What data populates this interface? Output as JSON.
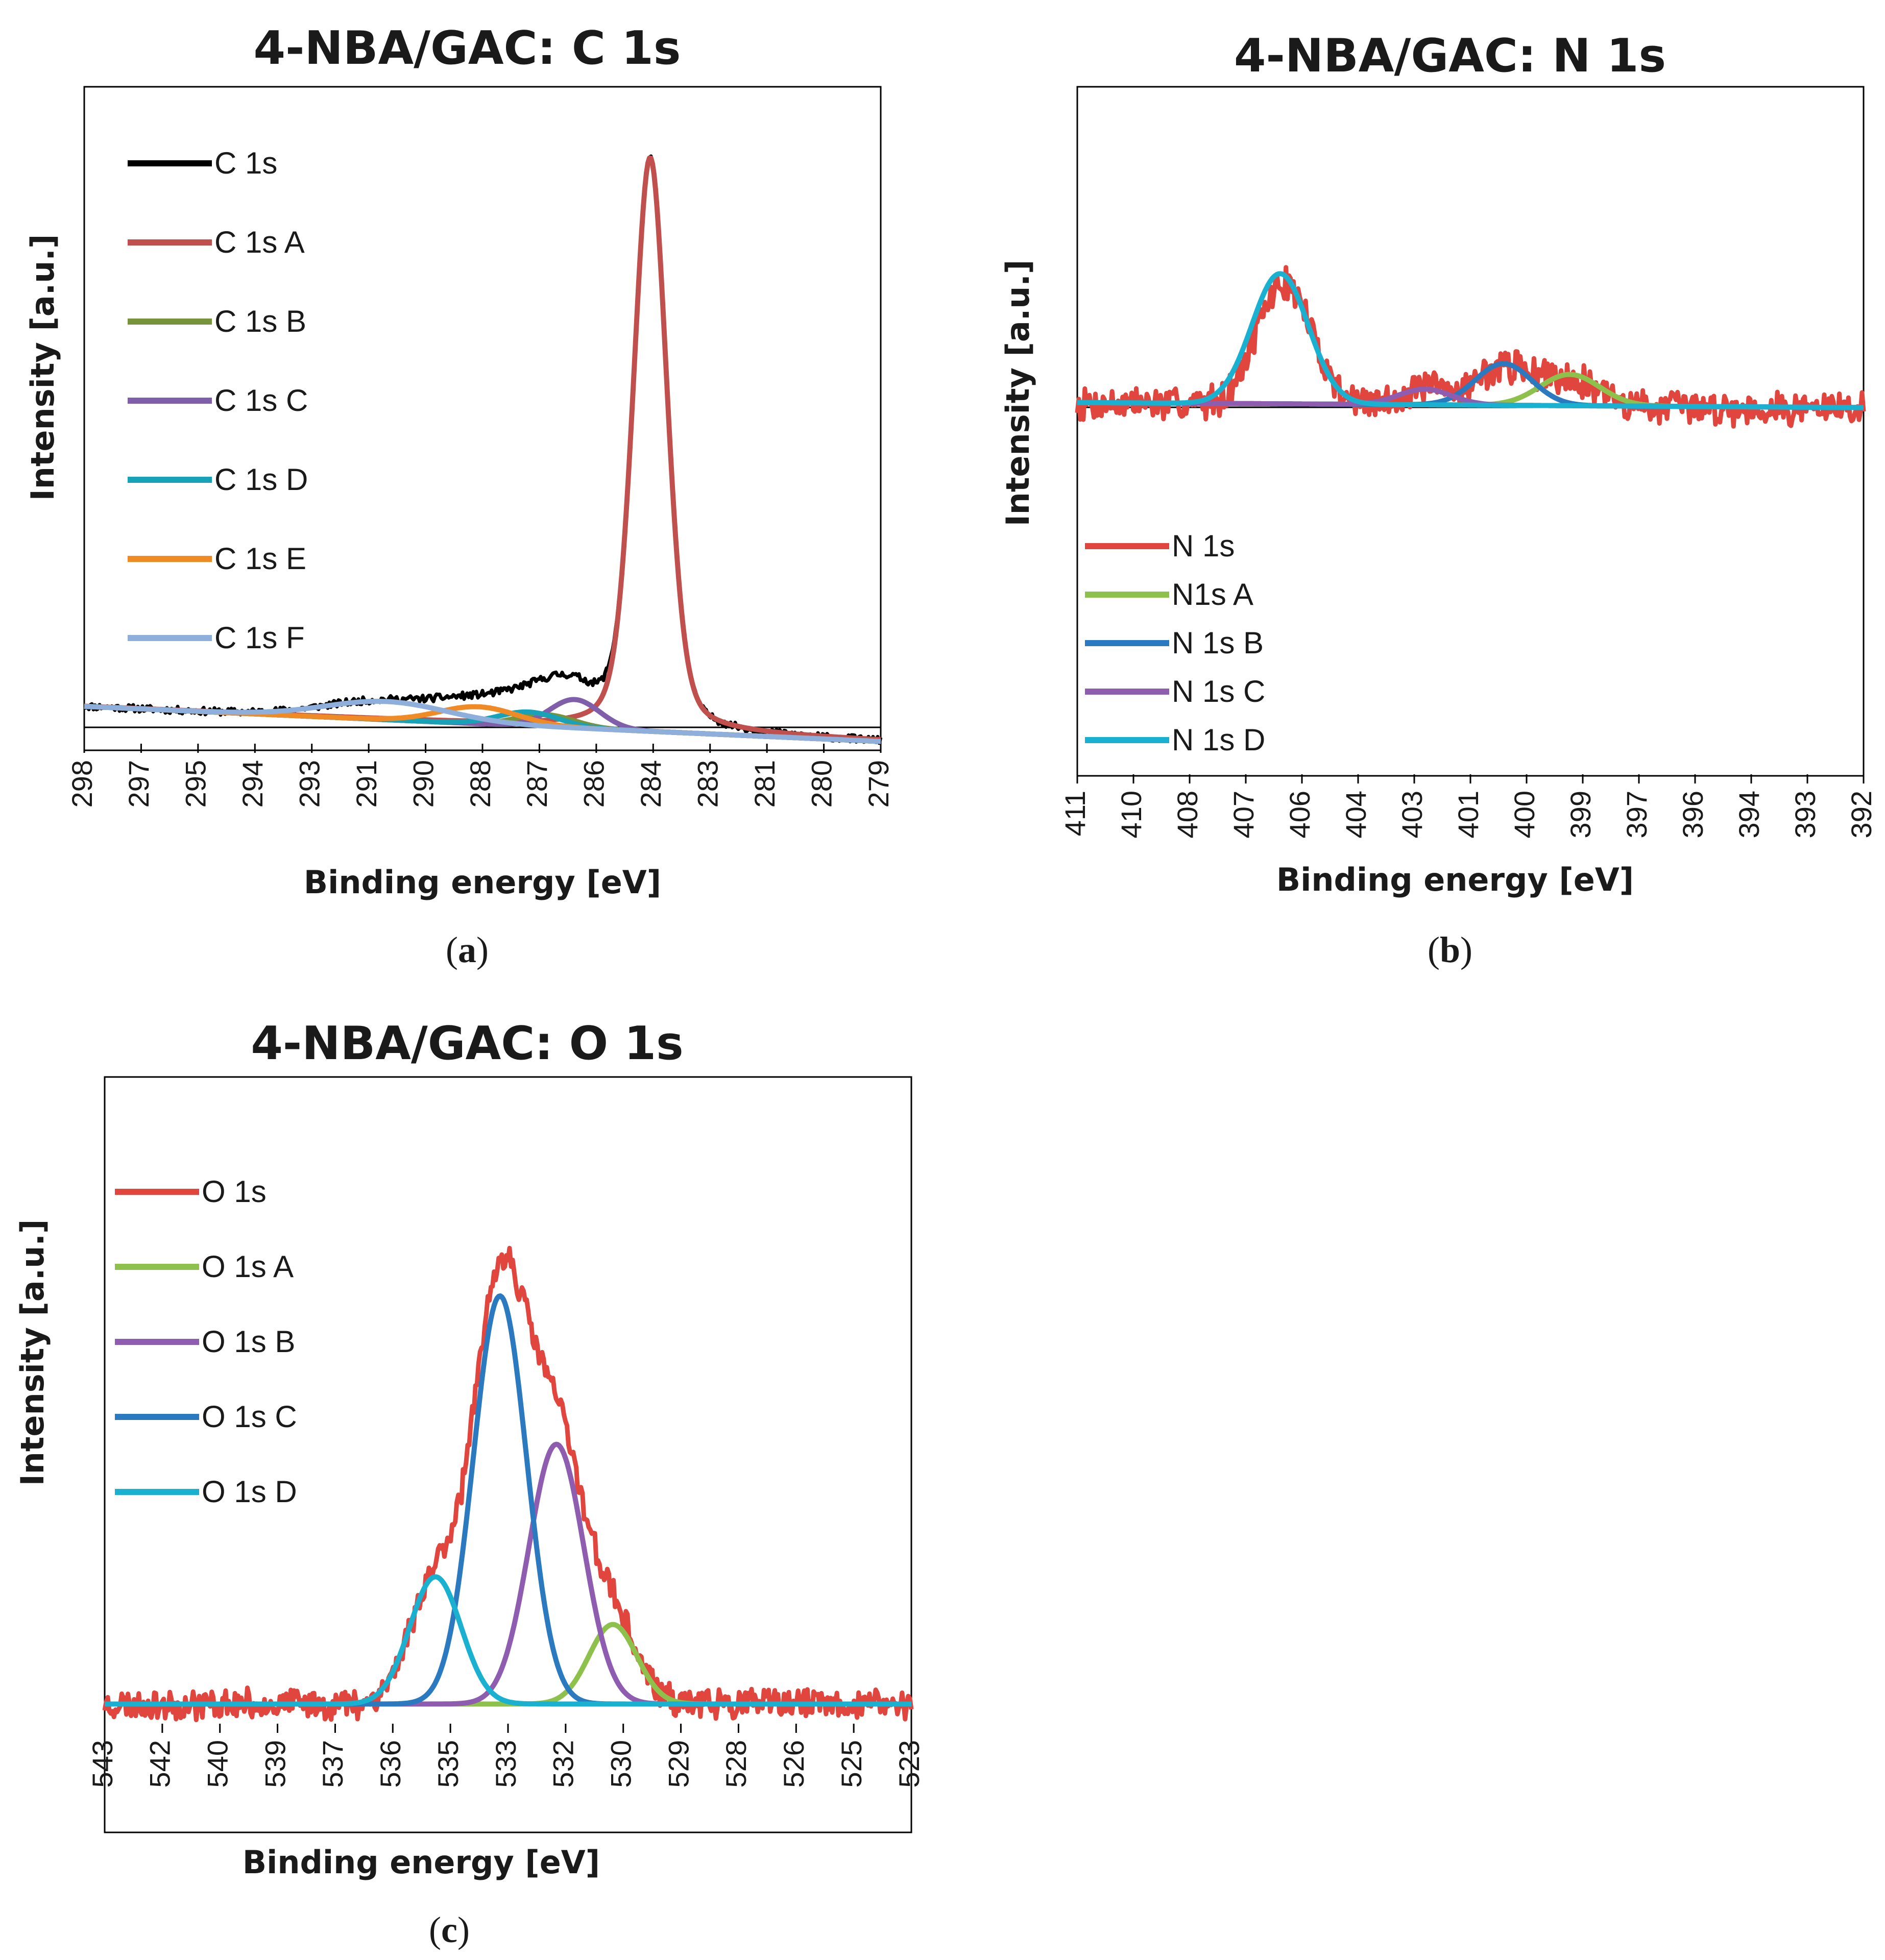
{
  "figure": {
    "panels": [
      {
        "id": "a",
        "letter": "a",
        "open": "(",
        "close": ")"
      },
      {
        "id": "b",
        "letter": "b",
        "open": "(",
        "close": ")"
      },
      {
        "id": "c",
        "letter": "c",
        "open": "(",
        "close": ")"
      }
    ]
  },
  "chart_data": [
    {
      "id": "a",
      "type": "line",
      "title": "4-NBA/GAC: C 1s",
      "xlabel": "Binding energy [eV]",
      "ylabel": "Intensity [a.u.]",
      "xlim": [
        298,
        279
      ],
      "ylim": [
        0,
        100
      ],
      "x_ticks": [
        298,
        297,
        295,
        294,
        293,
        291,
        290,
        288,
        287,
        286,
        284,
        283,
        281,
        280,
        279
      ],
      "legend_position": "top-left",
      "series": [
        {
          "name": "C 1s",
          "color": "#000000",
          "noise": 1.2,
          "seed": 11,
          "envelope": true,
          "peaks": [],
          "baseline": [
            6.0,
            0.2
          ]
        },
        {
          "name": "C 1s A",
          "color": "#c0504d",
          "noise": 0,
          "lorentz": true,
          "peaks": [
            {
              "center": 284.5,
              "height": 94.8,
              "fwhm": 0.95
            }
          ],
          "baseline": [
            6.0,
            0.3
          ]
        },
        {
          "name": "C 1s B",
          "color": "#77933c",
          "noise": 0,
          "peaks": [
            {
              "center": 287.0,
              "height": 2.0,
              "fwhm": 1.6
            }
          ],
          "baseline": [
            6.0,
            0.2
          ]
        },
        {
          "name": "C 1s C",
          "color": "#7f5fa9",
          "noise": 0,
          "peaks": [
            {
              "center": 286.3,
              "height": 4.7,
              "fwhm": 1.4
            }
          ],
          "baseline": [
            6.0,
            0.2
          ]
        },
        {
          "name": "C 1s D",
          "color": "#17a2b8",
          "noise": 0,
          "peaks": [
            {
              "center": 287.4,
              "height": 2.3,
              "fwhm": 1.7
            }
          ],
          "baseline": [
            6.0,
            0.2
          ]
        },
        {
          "name": "C 1s E",
          "color": "#f08a24",
          "noise": 0,
          "peaks": [
            {
              "center": 288.6,
              "height": 2.8,
              "fwhm": 2.2
            }
          ],
          "baseline": [
            6.0,
            0.2
          ]
        },
        {
          "name": "C 1s F",
          "color": "#8eaedb",
          "noise": 0,
          "peaks": [
            {
              "center": 290.8,
              "height": 3.0,
              "fwhm": 3.4
            }
          ],
          "baseline": [
            6.0,
            0.2
          ]
        }
      ]
    },
    {
      "id": "b",
      "type": "line",
      "title": "4-NBA/GAC: N 1s",
      "xlabel": "Binding energy [eV]",
      "ylabel": "Intensity [a.u.]",
      "xlim": [
        411,
        392
      ],
      "ylim": [
        -50,
        100
      ],
      "x_ticks": [
        411,
        410,
        408,
        407,
        406,
        404,
        403,
        401,
        400,
        399,
        397,
        396,
        394,
        393,
        392
      ],
      "legend_position": "bottom-left",
      "series": [
        {
          "name": "N 1s",
          "color": "#e0453e",
          "noise": 11,
          "seed": 7,
          "peaks": [
            {
              "center": 406.0,
              "height": 70,
              "fwhm": 1.55
            },
            {
              "center": 402.6,
              "height": 9,
              "fwhm": 1.4
            },
            {
              "center": 400.7,
              "height": 22,
              "fwhm": 1.6
            },
            {
              "center": 399.1,
              "height": 16,
              "fwhm": 1.6
            }
          ],
          "baseline": [
            0,
            -3
          ]
        },
        {
          "name": "N1s A",
          "color": "#8dc14b",
          "noise": 0,
          "peaks": [
            {
              "center": 399.1,
              "height": 18,
              "fwhm": 1.7
            }
          ],
          "baseline": [
            0.4,
            -2.5
          ]
        },
        {
          "name": "N 1s B",
          "color": "#2b7ac0",
          "noise": 0,
          "peaks": [
            {
              "center": 400.7,
              "height": 24,
              "fwhm": 1.6
            }
          ],
          "baseline": [
            0.4,
            -2.5
          ]
        },
        {
          "name": "N 1s C",
          "color": "#8e5db0",
          "noise": 0,
          "peaks": [
            {
              "center": 402.6,
              "height": 9,
              "fwhm": 1.5
            }
          ],
          "baseline": [
            0.4,
            -2.5
          ]
        },
        {
          "name": "N 1s D",
          "color": "#1ab0d0",
          "noise": 0,
          "peaks": [
            {
              "center": 406.1,
              "height": 75,
              "fwhm": 1.6
            }
          ],
          "baseline": [
            0.4,
            -2.5
          ]
        }
      ]
    },
    {
      "id": "c",
      "type": "line",
      "title": "4-NBA/GAC: O 1s",
      "xlabel": "Binding energy [eV]",
      "ylabel": "Intensity [a.u.]",
      "xlim": [
        543,
        523
      ],
      "ylim": [
        -4,
        100
      ],
      "x_ticks": [
        543,
        542,
        540,
        539,
        537,
        536,
        535,
        533,
        532,
        530,
        529,
        528,
        526,
        525,
        523
      ],
      "legend_position": "top-left",
      "series": [
        {
          "name": "O 1s",
          "color": "#e0453e",
          "noise": 3.2,
          "seed": 23,
          "peaks": [
            {
              "center": 534.8,
              "height": 23,
              "fwhm": 1.5
            },
            {
              "center": 533.2,
              "height": 77,
              "fwhm": 1.55
            },
            {
              "center": 531.8,
              "height": 49,
              "fwhm": 1.6
            },
            {
              "center": 530.4,
              "height": 15,
              "fwhm": 1.4
            }
          ],
          "baseline": [
            0,
            0
          ]
        },
        {
          "name": "O 1s A",
          "color": "#8dc14b",
          "noise": 0,
          "peaks": [
            {
              "center": 530.4,
              "height": 15,
              "fwhm": 1.4
            }
          ],
          "baseline": [
            0,
            0
          ]
        },
        {
          "name": "O 1s B",
          "color": "#8e5db0",
          "noise": 0,
          "peaks": [
            {
              "center": 531.8,
              "height": 49,
              "fwhm": 1.6
            }
          ],
          "baseline": [
            0,
            0
          ]
        },
        {
          "name": "O 1s C",
          "color": "#2b7ac0",
          "noise": 0,
          "peaks": [
            {
              "center": 533.2,
              "height": 77,
              "fwhm": 1.55
            }
          ],
          "baseline": [
            0,
            0
          ]
        },
        {
          "name": "O 1s D",
          "color": "#1ab0d0",
          "noise": 0,
          "peaks": [
            {
              "center": 534.8,
              "height": 24,
              "fwhm": 1.5
            }
          ],
          "baseline": [
            0,
            0
          ]
        }
      ]
    }
  ]
}
